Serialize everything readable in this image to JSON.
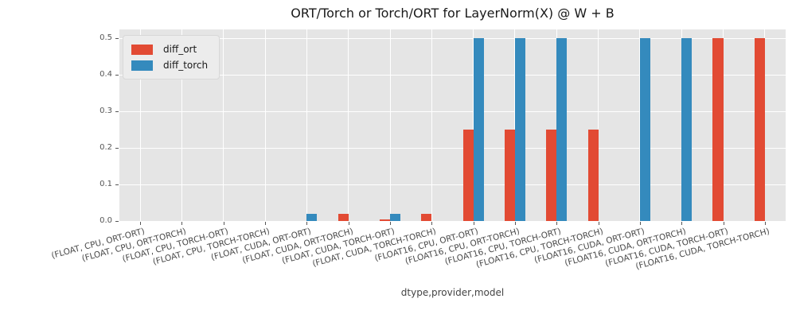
{
  "chart_data": {
    "type": "bar",
    "title": "ORT/Torch or Torch/ORT for LayerNorm(X) @ W + B",
    "xlabel": "dtype,provider,model",
    "ylabel": "",
    "categories": [
      "(FLOAT, CPU, ORT-ORT)",
      "(FLOAT, CPU, ORT-TORCH)",
      "(FLOAT, CPU, TORCH-ORT)",
      "(FLOAT, CPU, TORCH-TORCH)",
      "(FLOAT, CUDA, ORT-ORT)",
      "(FLOAT, CUDA, ORT-TORCH)",
      "(FLOAT, CUDA, TORCH-ORT)",
      "(FLOAT, CUDA, TORCH-TORCH)",
      "(FLOAT16, CPU, ORT-ORT)",
      "(FLOAT16, CPU, ORT-TORCH)",
      "(FLOAT16, CPU, TORCH-ORT)",
      "(FLOAT16, CPU, TORCH-TORCH)",
      "(FLOAT16, CUDA, ORT-ORT)",
      "(FLOAT16, CUDA, ORT-TORCH)",
      "(FLOAT16, CUDA, TORCH-ORT)",
      "(FLOAT16, CUDA, TORCH-TORCH)"
    ],
    "series": [
      {
        "name": "diff_ort",
        "color": "#e24a33",
        "values": [
          0,
          0,
          0,
          0,
          0,
          0.02,
          0.004,
          0.02,
          0.25,
          0.25,
          0.25,
          0.25,
          0,
          0,
          0.5,
          0.5
        ]
      },
      {
        "name": "diff_torch",
        "color": "#348abd",
        "values": [
          0,
          0,
          0,
          0,
          0.02,
          0,
          0.02,
          0,
          0.5,
          0.5,
          0.5,
          0,
          0.5,
          0.5,
          0,
          0
        ]
      }
    ],
    "yticks": [
      0.0,
      0.1,
      0.2,
      0.3,
      0.4,
      0.5
    ],
    "ylim": [
      0,
      0.525
    ],
    "grid": true,
    "legend_position": "upper left",
    "plot_bg_color": "#e5e5e5",
    "grid_color": "#ffffff",
    "tick_label_color": "#555555"
  }
}
